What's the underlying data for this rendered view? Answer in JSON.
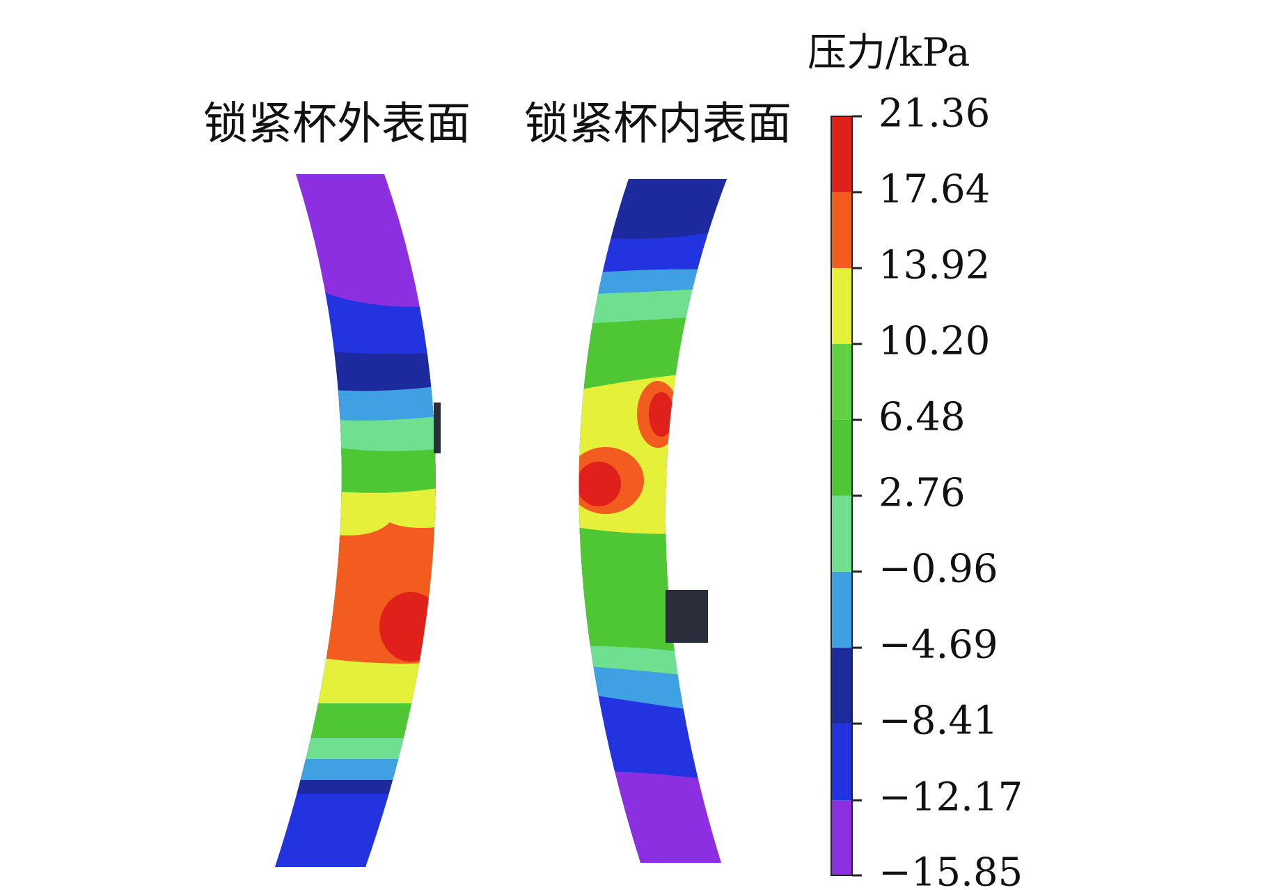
{
  "chart_data": {
    "type": "contour",
    "panel_titles": [
      "锁紧杯外表面",
      "锁紧杯内表面"
    ],
    "colorbar": {
      "title": "压力/kPa",
      "zlim": [
        -15.85,
        21.36
      ],
      "ticks": [
        {
          "value": -15.85,
          "label": "−15.85"
        },
        {
          "value": -12.17,
          "label": "−12.17"
        },
        {
          "value": -8.41,
          "label": "−8.41"
        },
        {
          "value": -4.69,
          "label": "−4.69"
        },
        {
          "value": -0.96,
          "label": "−0.96"
        },
        2.76,
        6.48,
        {
          "value": 10.2,
          "label": "10.20"
        },
        13.92,
        17.64,
        21.36
      ],
      "colors": [
        "#8b2fe0",
        "#2234e0",
        "#1c2a9e",
        "#3fa0e2",
        "#6fe090",
        "#4fc634",
        "#62d042",
        "#e4f03a",
        "#f25c1e",
        "#e0201a"
      ]
    }
  }
}
